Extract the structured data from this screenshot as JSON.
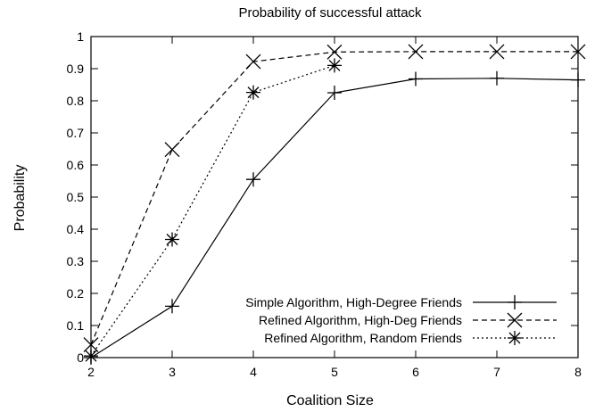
{
  "chart_data": {
    "type": "line",
    "title": "Probability of successful attack",
    "xlabel": "Coalition Size",
    "ylabel": "Probability",
    "xlim": [
      2,
      8
    ],
    "ylim": [
      0,
      1
    ],
    "xticks": [
      "2",
      "3",
      "4",
      "5",
      "6",
      "7",
      "8"
    ],
    "yticks": [
      "0",
      "0.1",
      "0.2",
      "0.3",
      "0.4",
      "0.5",
      "0.6",
      "0.7",
      "0.8",
      "0.9",
      "1"
    ],
    "grid": false,
    "legend_position": "bottom-right",
    "series": [
      {
        "name": "Simple Algorithm, High-Degree Friends",
        "marker": "plus",
        "line": "solid",
        "x": [
          2,
          3,
          4,
          5,
          6,
          7,
          8
        ],
        "y": [
          0.0,
          0.16,
          0.555,
          0.825,
          0.868,
          0.87,
          0.865
        ]
      },
      {
        "name": "Refined Algorithm, High-Deg Friends",
        "marker": "cross",
        "line": "dashed",
        "x": [
          2,
          3,
          4,
          5,
          6,
          7,
          8
        ],
        "y": [
          0.04,
          0.648,
          0.922,
          0.952,
          0.953,
          0.953,
          0.953
        ]
      },
      {
        "name": "Refined Algorithm, Random Friends",
        "marker": "star",
        "line": "dotted",
        "x": [
          2,
          3,
          4,
          5
        ],
        "y": [
          0.005,
          0.368,
          0.826,
          0.91
        ]
      }
    ]
  }
}
